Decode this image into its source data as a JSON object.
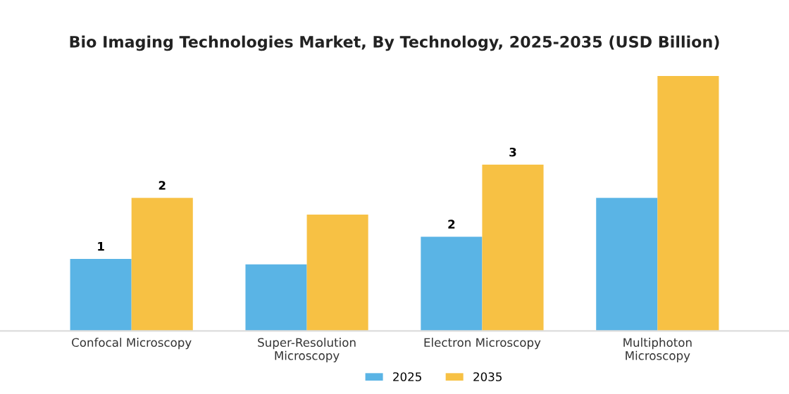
{
  "chart_data": {
    "type": "bar",
    "title": "Bio Imaging Technologies Market, By Technology, 2025-2035 (USD Billion)",
    "categories": [
      "Confocal Microscopy",
      "Super-Resolution\nMicroscopy",
      "Electron Microscopy",
      "Multiphoton\nMicroscopy"
    ],
    "series": [
      {
        "name": "2025",
        "color": "#5ab4e5",
        "values": [
          1.3,
          1.2,
          1.7,
          2.4
        ],
        "value_labels": [
          "1",
          null,
          "2",
          null
        ]
      },
      {
        "name": "2035",
        "color": "#f7c144",
        "values": [
          2.4,
          2.1,
          3.0,
          4.6
        ],
        "value_labels": [
          "2",
          null,
          "3",
          null
        ]
      }
    ],
    "legend": "bottom",
    "grid": false
  }
}
